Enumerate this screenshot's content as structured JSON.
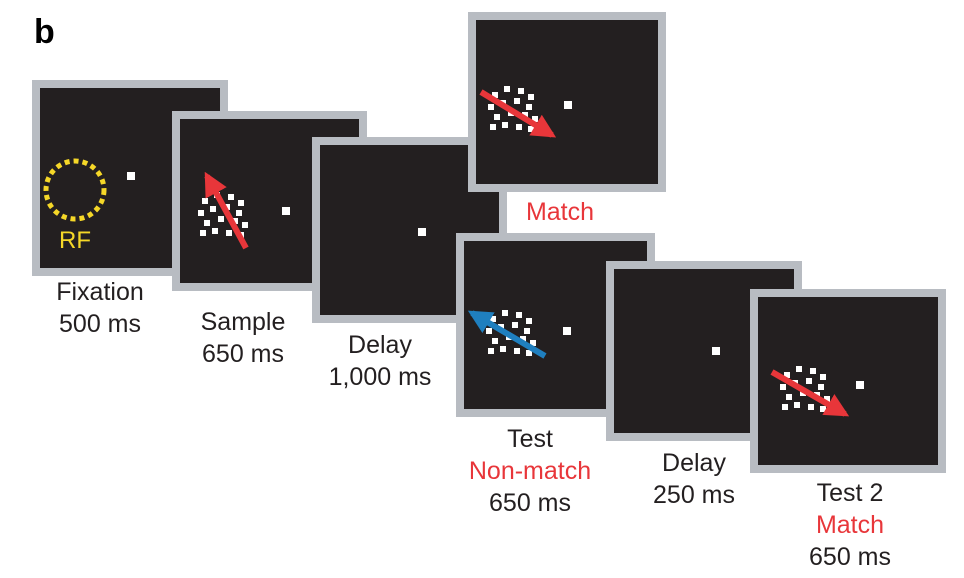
{
  "panel_letter": "b",
  "receptive_field_label": "RF",
  "colors": {
    "screen": "#231f20",
    "frame": "#b8bcc2",
    "dots": "#ffffff",
    "rf_circle": "#f5d728",
    "match_arrow": "#e8363a",
    "nonmatch_arrow": "#1f7fbf",
    "highlight_text": "#e8363a"
  },
  "epochs": [
    {
      "name": "Fixation",
      "duration": "500 ms"
    },
    {
      "name": "Sample",
      "duration": "650 ms"
    },
    {
      "name": "Delay",
      "duration": "1,000 ms"
    },
    {
      "name": "Test",
      "condition": "Non-match",
      "duration": "650 ms",
      "alt_condition": "Match"
    },
    {
      "name": "Delay",
      "duration": "250 ms"
    },
    {
      "name": "Test 2",
      "condition": "Match",
      "duration": "650 ms"
    }
  ]
}
